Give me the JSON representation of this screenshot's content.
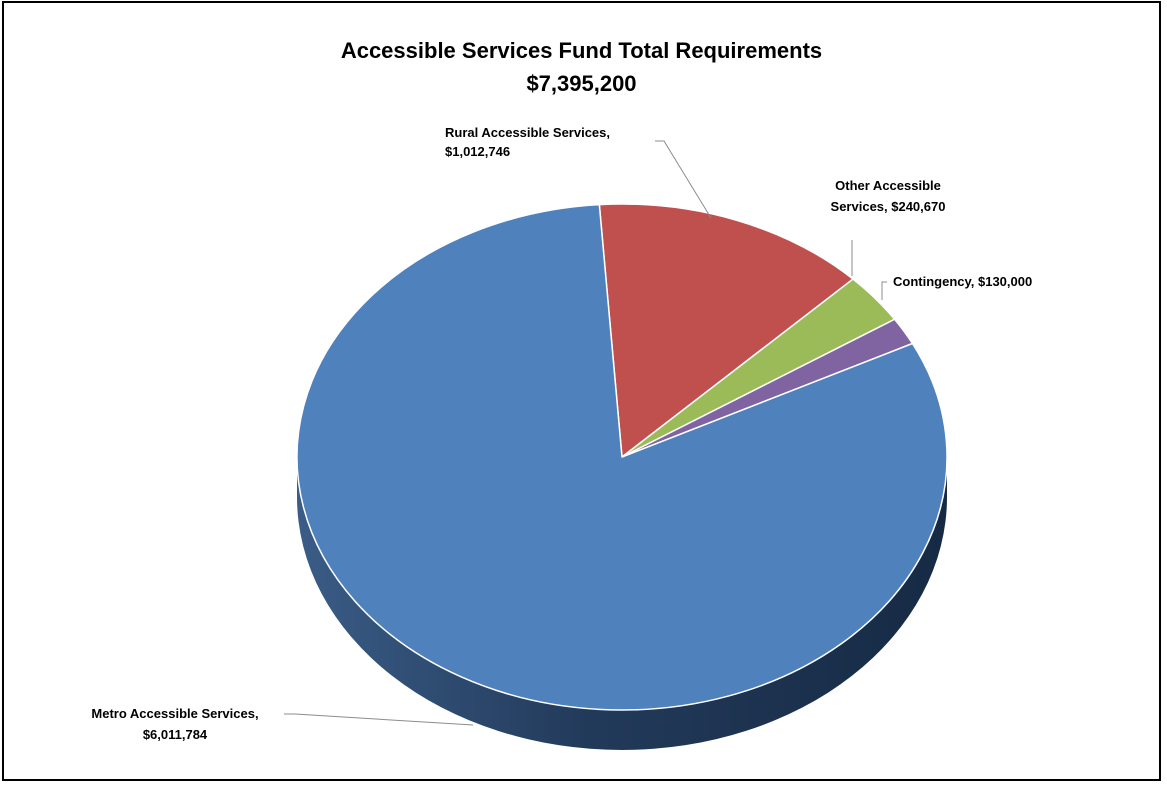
{
  "chart_data": {
    "type": "pie",
    "title": "Accessible Services Fund Total Requirements",
    "subtitle": "$7,395,200",
    "slices": [
      {
        "name": "Rural Accessible Services",
        "value": 1012746,
        "value_label": "$1,012,746",
        "color": "#c0504d",
        "label_lines": [
          "Rural Accessible Services,",
          "$1,012,746"
        ]
      },
      {
        "name": "Other Accessible Services",
        "value": 240670,
        "value_label": "$240,670",
        "color": "#9bbb59",
        "label_lines": [
          "Other Accessible",
          "Services,  $240,670"
        ]
      },
      {
        "name": "Contingency",
        "value": 130000,
        "value_label": "$130,000",
        "color": "#8064a2",
        "label_lines": [
          "Contingency,  $130,000"
        ]
      },
      {
        "name": "Metro Accessible Services",
        "value": 6011784,
        "value_label": "$6,011,784",
        "color": "#4f81bd",
        "label_lines": [
          "Metro Accessible Services,",
          "$6,011,784"
        ]
      }
    ],
    "style": "3d-pie",
    "legend": "none"
  }
}
